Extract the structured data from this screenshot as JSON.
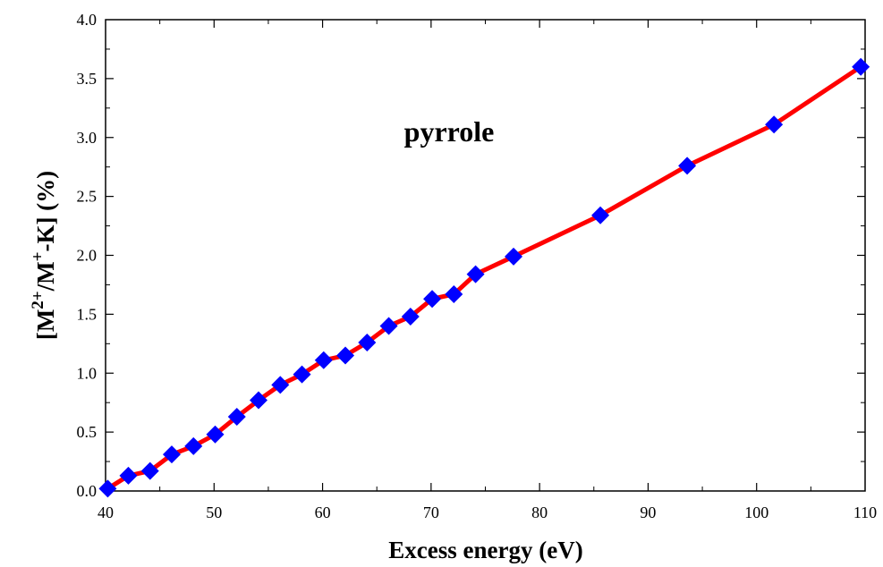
{
  "chart_data": {
    "type": "line",
    "annotation": "pyrrole",
    "xlabel": "Excess energy (eV)",
    "ylabel": {
      "open": "[M",
      "sup1": "2+",
      "mid": "/M",
      "sup2": "+",
      "close": "-K] (%)"
    },
    "xlim": [
      40,
      110
    ],
    "ylim": [
      0,
      4.0
    ],
    "x_ticks": [
      40,
      50,
      60,
      70,
      80,
      90,
      100,
      110
    ],
    "x_tick_labels": [
      "40",
      "50",
      "60",
      "70",
      "80",
      "90",
      "100",
      "110"
    ],
    "y_ticks": [
      0,
      0.5,
      1.0,
      1.5,
      2.0,
      2.5,
      3.0,
      3.5,
      4.0
    ],
    "y_tick_labels": [
      "0.0",
      "0.5",
      "1.0",
      "1.5",
      "2.0",
      "2.5",
      "3.0",
      "3.5",
      "4.0"
    ],
    "grid": false,
    "series": [
      {
        "line_color": "#ff0000",
        "marker_color": "#0000ff",
        "marker": "diamond",
        "x": [
          40.2,
          42.1,
          44.1,
          46.1,
          48.1,
          50.1,
          52.1,
          54.1,
          56.1,
          58.1,
          60.1,
          62.1,
          64.1,
          66.1,
          68.1,
          70.1,
          72.1,
          74.1,
          77.6,
          85.6,
          93.6,
          101.6,
          109.6
        ],
        "y": [
          0.02,
          0.13,
          0.17,
          0.31,
          0.38,
          0.48,
          0.63,
          0.77,
          0.9,
          0.99,
          1.11,
          1.15,
          1.26,
          1.4,
          1.48,
          1.63,
          1.67,
          1.84,
          1.99,
          2.34,
          2.76,
          3.11,
          3.6
        ]
      }
    ]
  }
}
